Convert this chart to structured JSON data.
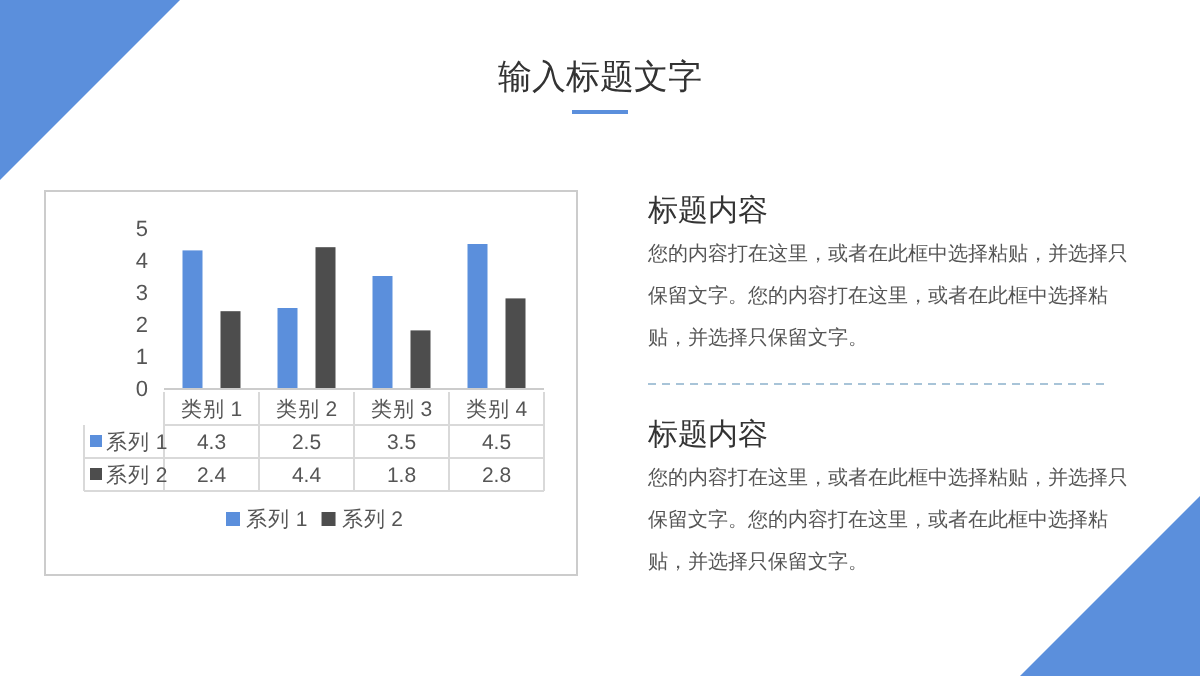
{
  "chart_data": [
    {
      "type": "bar",
      "title": "输入标题文字",
      "categories": [
        "类别 1",
        "类别 2",
        "类别 3",
        "类别 4"
      ],
      "series": [
        {
          "name": "系列 1",
          "color": "#5b8fdc",
          "values": [
            4.3,
            2.5,
            3.5,
            4.5
          ]
        },
        {
          "name": "系列 2",
          "color": "#4d4d4d",
          "values": [
            2.4,
            4.4,
            1.8,
            2.8
          ]
        }
      ],
      "ylim": [
        0,
        5
      ],
      "yticks": [
        0,
        1,
        2,
        3,
        4,
        5
      ],
      "data_labels": true,
      "legend": "bottom"
    },
    {
      "type": "other",
      "annotations": [
        "标题内容",
        "您的内容打在这里，或者在此框中选择粘贴，并选择只保留文字。您的内容打在这里，或者在此框中选择粘贴，并选择只保留文字。",
        "标题内容",
        "您的内容打在这里，或者在此框中选择粘贴，并选择只保留文字。您的内容打在这里，或者在此框中选择粘贴，并选择只保留文字。"
      ]
    }
  ]
}
